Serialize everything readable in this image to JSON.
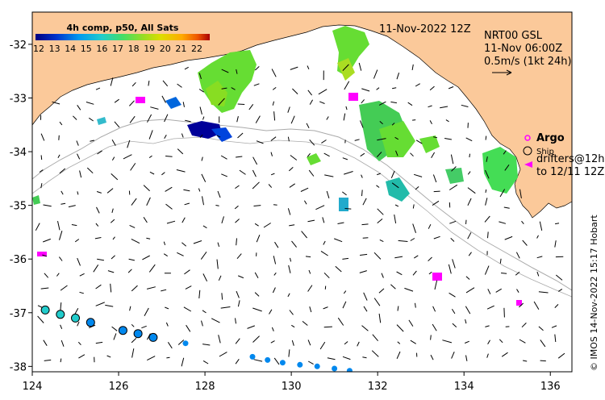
{
  "header": {
    "date_label": "11-Nov-2022 12Z",
    "source_line1": "NRT00 GSL",
    "source_line2": "11-Nov 06:00Z",
    "speed_scale": "0.5m/s (1kt 24h)"
  },
  "colorbar": {
    "title": "4h comp, p50, All Sats",
    "ticks": [
      "12",
      "13",
      "14",
      "15",
      "16",
      "17",
      "18",
      "19",
      "20",
      "21",
      "22"
    ],
    "colors": [
      "#000080",
      "#0033cc",
      "#0088ee",
      "#22cccc",
      "#44dd88",
      "#66dd33",
      "#aadd22",
      "#dddd00",
      "#ffaa00",
      "#ee5500",
      "#aa0000"
    ]
  },
  "legend": {
    "argo_label": "Argo",
    "ship_label": "Ship",
    "drifters_label_line1": "drifters@12h",
    "drifters_label_line2": "to 12/11 12Z"
  },
  "axes": {
    "x_ticks": [
      "124",
      "126",
      "128",
      "130",
      "132",
      "134",
      "136"
    ],
    "y_ticks": [
      "-32",
      "-33",
      "-34",
      "-35",
      "-36",
      "-37",
      "-38"
    ]
  },
  "credit": "© IMOS 14-Nov-2022 15:17 Hobart",
  "colors": {
    "land": "#fbc99a",
    "argo": "#ff00ff",
    "drifter": "#ff00ff",
    "shelf_contour": "#aaaaaa",
    "vectors": "#000000"
  },
  "drifter_tracks": [
    {
      "points": [
        {
          "lon": 124.3,
          "lat": -36.95,
          "sst": 15
        },
        {
          "lon": 124.65,
          "lat": -37.03,
          "sst": 15
        },
        {
          "lon": 125.0,
          "lat": -37.1,
          "sst": 15
        },
        {
          "lon": 125.35,
          "lat": -37.18,
          "sst": 14
        },
        {
          "lon": 126.1,
          "lat": -37.33,
          "sst": 14
        },
        {
          "lon": 126.45,
          "lat": -37.39,
          "sst": 14
        },
        {
          "lon": 126.8,
          "lat": -37.46,
          "sst": 14
        },
        {
          "lon": 127.55,
          "lat": -37.57,
          "sst": 14
        },
        {
          "lon": 129.1,
          "lat": -37.82,
          "sst": 14
        },
        {
          "lon": 129.45,
          "lat": -37.88,
          "sst": 14
        },
        {
          "lon": 129.8,
          "lat": -37.93,
          "sst": 14
        },
        {
          "lon": 130.2,
          "lat": -37.97,
          "sst": 14
        },
        {
          "lon": 130.6,
          "lat": -38.0,
          "sst": 14
        },
        {
          "lon": 131.0,
          "lat": -38.04,
          "sst": 14
        },
        {
          "lon": 131.35,
          "lat": -38.08,
          "sst": 14
        }
      ]
    }
  ]
}
